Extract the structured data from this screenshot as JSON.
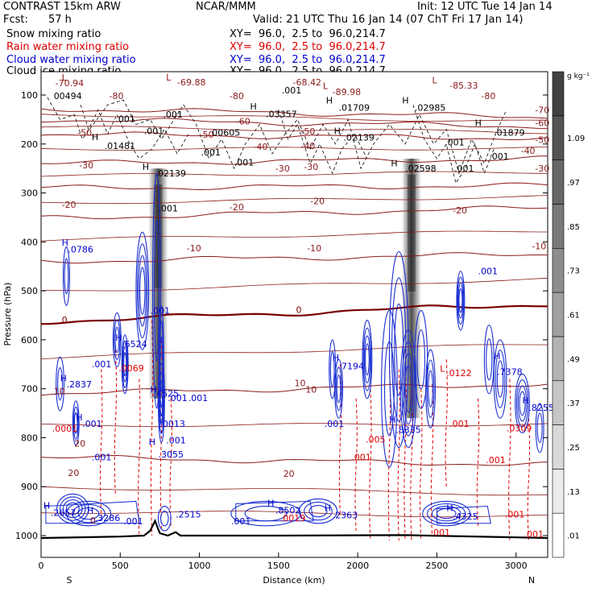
{
  "header": {
    "model": "CONTRAST 15km ARW",
    "fcst_label": "Fcst:",
    "fcst_value": "57 h",
    "center": "NCAR/MMM",
    "init": "Init: 12 UTC Tue 14 Jan 14",
    "valid": "Valid: 21 UTC Thu 16 Jan 14 (07 ChT Fri 17 Jan 14)",
    "xy_text": "XY=  96.0,  2.5 to  96.0,214.7"
  },
  "legend": [
    {
      "name": "Snow mixing ratio",
      "color": "#000000"
    },
    {
      "name": "Rain water mixing ratio",
      "color": "#dd0000"
    },
    {
      "name": "Cloud water mixing ratio",
      "color": "#0000cc"
    },
    {
      "name": "Cloud ice mixing ratio",
      "color": "#000000"
    }
  ],
  "colors": {
    "temperature": "#8b1a1a",
    "freezing": "#7a0000",
    "rain": "#dd0000",
    "cloud_water": "#1a2fd0",
    "cloud_ice": "#000000",
    "terrain": "#000000"
  },
  "chart_data": {
    "type": "heatmap",
    "xlabel": "Distance (km)",
    "ylabel": "Pressure (hPa)",
    "xlim": [
      0,
      3200
    ],
    "ylim": [
      1030,
      50
    ],
    "x_ticks": [
      0,
      500,
      1000,
      1500,
      2000,
      2500,
      3000
    ],
    "y_ticks": [
      100,
      200,
      300,
      400,
      500,
      600,
      700,
      800,
      900,
      1000
    ],
    "x_end_labels": {
      "left": "S",
      "right": "N"
    },
    "colorbar": {
      "unit": "g kg⁻¹",
      "levels": [
        ".01",
        ".13",
        ".25",
        ".37",
        ".49",
        ".61",
        ".73",
        ".85",
        ".97",
        "1.09"
      ]
    },
    "snow_columns": [
      {
        "x_km": 740,
        "p_top": 250,
        "p_bottom": 720
      },
      {
        "x_km": 2340,
        "p_top": 230,
        "p_bottom": 760
      }
    ],
    "temperature_contours": [
      {
        "label": "-70",
        "p_left": 128,
        "p_right": 145
      },
      {
        "label": "-60",
        "p_left": 150,
        "p_right": 164
      },
      {
        "label": "-50",
        "p_left": 180,
        "p_right": 188
      },
      {
        "label": "-40",
        "p_left": 240,
        "p_right": 230
      },
      {
        "label": "-30",
        "p_left": 290,
        "p_right": 285
      },
      {
        "label": "-20",
        "p_left": 352,
        "p_right": 330
      },
      {
        "label": "-10",
        "p_left": 440,
        "p_right": 425
      },
      {
        "label": "0",
        "p_left": 563,
        "p_right": 527
      },
      {
        "label": "10",
        "p_left": 710,
        "p_right": 690
      },
      {
        "label": "20",
        "p_left": 840,
        "p_right": 855
      }
    ],
    "annotations": [
      {
        "text": "-70.94",
        "x": 90,
        "p": 82,
        "color": "#8b1a1a"
      },
      {
        "text": "-69.88",
        "x": 860,
        "p": 80,
        "color": "#8b1a1a"
      },
      {
        "text": "-68.42",
        "x": 1590,
        "p": 80,
        "color": "#8b1a1a"
      },
      {
        "text": "-85.33",
        "x": 2580,
        "p": 87,
        "color": "#8b1a1a"
      },
      {
        "text": "-89.98",
        "x": 1840,
        "p": 100,
        "color": "#8b1a1a"
      },
      {
        "text": "L",
        "x": 130,
        "p": 70,
        "color": "#8b1a1a"
      },
      {
        "text": "L",
        "x": 790,
        "p": 70,
        "color": "#8b1a1a"
      },
      {
        "text": "L",
        "x": 1780,
        "p": 88,
        "color": "#8b1a1a"
      },
      {
        "text": "L",
        "x": 2470,
        "p": 76,
        "color": "#8b1a1a"
      },
      {
        "text": "00494",
        "x": 80,
        "p": 108,
        "color": "#000000"
      },
      {
        "text": "-80",
        "x": 430,
        "p": 108,
        "color": "#8b1a1a"
      },
      {
        "text": "-80",
        "x": 1190,
        "p": 108,
        "color": "#8b1a1a"
      },
      {
        "text": "-80",
        "x": 2780,
        "p": 108,
        "color": "#8b1a1a"
      },
      {
        "text": ".001",
        "x": 1520,
        "p": 97,
        "color": "#000000"
      },
      {
        "text": "H",
        "x": 1320,
        "p": 130,
        "color": "#000000"
      },
      {
        "text": ".03357",
        "x": 1420,
        "p": 145,
        "color": "#000000"
      },
      {
        "text": "H",
        "x": 1800,
        "p": 117,
        "color": "#000000"
      },
      {
        "text": ".01709",
        "x": 1880,
        "p": 132,
        "color": "#000000"
      },
      {
        "text": "H",
        "x": 2280,
        "p": 117,
        "color": "#000000"
      },
      {
        "text": ".02985",
        "x": 2360,
        "p": 132,
        "color": "#000000"
      },
      {
        "text": "-70",
        "x": 3120,
        "p": 137,
        "color": "#8b1a1a"
      },
      {
        "text": "-60",
        "x": 3120,
        "p": 163,
        "color": "#8b1a1a"
      },
      {
        "text": ".001",
        "x": 470,
        "p": 155,
        "color": "#000000"
      },
      {
        "text": ".001",
        "x": 770,
        "p": 146,
        "color": "#000000"
      },
      {
        "text": "-60",
        "x": 1230,
        "p": 160,
        "color": "#8b1a1a"
      },
      {
        "text": "H",
        "x": 2740,
        "p": 163,
        "color": "#000000"
      },
      {
        "text": "-50",
        "x": 230,
        "p": 183,
        "color": "#8b1a1a"
      },
      {
        "text": ".001",
        "x": 650,
        "p": 180,
        "color": "#000000"
      },
      {
        "text": "-50",
        "x": 1000,
        "p": 187,
        "color": "#8b1a1a"
      },
      {
        "text": "00605",
        "x": 1080,
        "p": 183,
        "color": "#000000"
      },
      {
        "text": "-50",
        "x": 1640,
        "p": 181,
        "color": "#8b1a1a"
      },
      {
        "text": "H",
        "x": 1850,
        "p": 180,
        "color": "#000000"
      },
      {
        "text": ".01879",
        "x": 2860,
        "p": 183,
        "color": "#000000"
      },
      {
        "text": "-50",
        "x": 3120,
        "p": 198,
        "color": "#8b1a1a"
      },
      {
        "text": "H",
        "x": 320,
        "p": 192,
        "color": "#000000"
      },
      {
        "text": ".02139",
        "x": 1910,
        "p": 193,
        "color": "#000000"
      },
      {
        "text": ".01481",
        "x": 400,
        "p": 210,
        "color": "#000000"
      },
      {
        "text": "-40",
        "x": 1340,
        "p": 212,
        "color": "#8b1a1a"
      },
      {
        "text": "-40",
        "x": 1640,
        "p": 210,
        "color": "#8b1a1a"
      },
      {
        "text": ".001",
        "x": 2550,
        "p": 203,
        "color": "#000000"
      },
      {
        "text": "-40",
        "x": 3030,
        "p": 220,
        "color": "#8b1a1a"
      },
      {
        "text": ".001",
        "x": 1010,
        "p": 223,
        "color": "#000000"
      },
      {
        "text": ".001",
        "x": 2830,
        "p": 232,
        "color": "#000000"
      },
      {
        "text": "-30",
        "x": 240,
        "p": 250,
        "color": "#8b1a1a"
      },
      {
        "text": "H",
        "x": 640,
        "p": 253,
        "color": "#000000"
      },
      {
        "text": ".001",
        "x": 1220,
        "p": 244,
        "color": "#000000"
      },
      {
        "text": "-30",
        "x": 1480,
        "p": 256,
        "color": "#8b1a1a"
      },
      {
        "text": "-30",
        "x": 1660,
        "p": 253,
        "color": "#8b1a1a"
      },
      {
        "text": "H",
        "x": 2210,
        "p": 246,
        "color": "#000000"
      },
      {
        "text": ".02598",
        "x": 2300,
        "p": 256,
        "color": "#000000"
      },
      {
        "text": ".001",
        "x": 2610,
        "p": 256,
        "color": "#000000"
      },
      {
        "text": "-30",
        "x": 3120,
        "p": 256,
        "color": "#8b1a1a"
      },
      {
        "text": ".02139",
        "x": 720,
        "p": 266,
        "color": "#000000"
      },
      {
        "text": "-20",
        "x": 130,
        "p": 330,
        "color": "#8b1a1a"
      },
      {
        "text": ".001",
        "x": 740,
        "p": 338,
        "color": "#000000"
      },
      {
        "text": "-20",
        "x": 1190,
        "p": 335,
        "color": "#8b1a1a"
      },
      {
        "text": "-20",
        "x": 1700,
        "p": 323,
        "color": "#8b1a1a"
      },
      {
        "text": "-20",
        "x": 2600,
        "p": 342,
        "color": "#8b1a1a"
      },
      {
        "text": "H",
        "x": 130,
        "p": 408,
        "color": "#0000cc"
      },
      {
        "text": ".0786",
        "x": 170,
        "p": 422,
        "color": "#0000cc"
      },
      {
        "text": "-10",
        "x": 920,
        "p": 419,
        "color": "#8b1a1a"
      },
      {
        "text": "-10",
        "x": 1680,
        "p": 419,
        "color": "#8b1a1a"
      },
      {
        "text": "-10",
        "x": 3100,
        "p": 415,
        "color": "#8b1a1a"
      },
      {
        "text": ".001",
        "x": 2760,
        "p": 466,
        "color": "#0000cc"
      },
      {
        "text": "0",
        "x": 130,
        "p": 566,
        "color": "#7a0000"
      },
      {
        "text": "0",
        "x": 1610,
        "p": 545,
        "color": "#7a0000"
      },
      {
        "text": ".001",
        "x": 690,
        "p": 547,
        "color": "#0000cc"
      },
      {
        "text": "H",
        "x": 470,
        "p": 602,
        "color": "#0000cc"
      },
      {
        "text": ".6524",
        "x": 510,
        "p": 615,
        "color": "#0000cc"
      },
      {
        "text": ".001",
        "x": 320,
        "p": 656,
        "color": "#0000cc"
      },
      {
        "text": ".0069",
        "x": 490,
        "p": 664,
        "color": "#dd0000"
      },
      {
        "text": "H",
        "x": 1840,
        "p": 643,
        "color": "#0000cc"
      },
      {
        "text": ".7194",
        "x": 1880,
        "p": 660,
        "color": "#0000cc"
      },
      {
        "text": "L",
        "x": 2520,
        "p": 665,
        "color": "#dd0000"
      },
      {
        "text": ".0122",
        "x": 2560,
        "p": 674,
        "color": "#dd0000"
      },
      {
        "text": "H",
        "x": 2860,
        "p": 640,
        "color": "#0000cc"
      },
      {
        "text": ".7378",
        "x": 2880,
        "p": 672,
        "color": "#0000cc"
      },
      {
        "text": "H",
        "x": 120,
        "p": 685,
        "color": "#0000cc"
      },
      {
        "text": ".2837",
        "x": 160,
        "p": 697,
        "color": "#0000cc"
      },
      {
        "text": "10",
        "x": 80,
        "p": 711,
        "color": "#8b1a1a"
      },
      {
        "text": "10",
        "x": 1600,
        "p": 695,
        "color": "#8b1a1a"
      },
      {
        "text": "10",
        "x": 1670,
        "p": 708,
        "color": "#8b1a1a"
      },
      {
        "text": ".4525",
        "x": 710,
        "p": 716,
        "color": "#0000cc"
      },
      {
        "text": "H",
        "x": 690,
        "p": 708,
        "color": "#0000cc"
      },
      {
        "text": ".001",
        "x": 800,
        "p": 725,
        "color": "#0000cc"
      },
      {
        "text": ".001",
        "x": 930,
        "p": 725,
        "color": "#0000cc"
      },
      {
        "text": "H",
        "x": 3040,
        "p": 730,
        "color": "#0000cc"
      },
      {
        "text": ".8255",
        "x": 3080,
        "p": 745,
        "color": "#0000cc"
      },
      {
        "text": "H",
        "x": 220,
        "p": 765,
        "color": "#0000cc"
      },
      {
        "text": ".001",
        "x": 260,
        "p": 778,
        "color": "#0000cc"
      },
      {
        "text": ".0001",
        "x": 70,
        "p": 788,
        "color": "#dd0000"
      },
      {
        "text": ".001",
        "x": 1790,
        "p": 778,
        "color": "#0000cc"
      },
      {
        "text": "H",
        "x": 2200,
        "p": 770,
        "color": "#0000cc"
      },
      {
        "text": ".8335",
        "x": 2240,
        "p": 790,
        "color": "#0000cc"
      },
      {
        "text": ".001",
        "x": 2580,
        "p": 778,
        "color": "#dd0000"
      },
      {
        "text": ".0309",
        "x": 2940,
        "p": 787,
        "color": "#dd0000"
      },
      {
        "text": ".0013",
        "x": 750,
        "p": 778,
        "color": "#0000cc"
      },
      {
        "text": ".001",
        "x": 790,
        "p": 812,
        "color": "#0000cc"
      },
      {
        "text": ".005",
        "x": 2050,
        "p": 810,
        "color": "#dd0000"
      },
      {
        "text": "H",
        "x": 680,
        "p": 815,
        "color": "#0000cc"
      },
      {
        "text": "20",
        "x": 210,
        "p": 818,
        "color": "#8b1a1a"
      },
      {
        "text": ".3055",
        "x": 740,
        "p": 840,
        "color": "#0000cc"
      },
      {
        "text": ".001",
        "x": 320,
        "p": 846,
        "color": "#0000cc"
      },
      {
        "text": ".001",
        "x": 1960,
        "p": 846,
        "color": "#dd0000"
      },
      {
        "text": ".001",
        "x": 2810,
        "p": 852,
        "color": "#dd0000"
      },
      {
        "text": "20",
        "x": 170,
        "p": 878,
        "color": "#8b1a1a"
      },
      {
        "text": "20",
        "x": 1530,
        "p": 880,
        "color": "#8b1a1a"
      },
      {
        "text": "H",
        "x": 15,
        "p": 945,
        "color": "#0000cc"
      },
      {
        "text": ".2657",
        "x": 60,
        "p": 960,
        "color": "#0000cc"
      },
      {
        "text": "H",
        "x": 290,
        "p": 955,
        "color": "#0000cc"
      },
      {
        "text": ".3286",
        "x": 340,
        "p": 970,
        "color": "#0000cc"
      },
      {
        "text": ".001",
        "x": 520,
        "p": 977,
        "color": "#0000cc"
      },
      {
        "text": ".2515",
        "x": 850,
        "p": 963,
        "color": "#0000cc"
      },
      {
        "text": ".001",
        "x": 1200,
        "p": 977,
        "color": "#0000cc"
      },
      {
        "text": "H",
        "x": 1430,
        "p": 940,
        "color": "#0000cc"
      },
      {
        "text": ".8502",
        "x": 1480,
        "p": 955,
        "color": "#0000cc"
      },
      {
        "text": ".0019",
        "x": 1510,
        "p": 970,
        "color": "#dd0000"
      },
      {
        "text": "H",
        "x": 1790,
        "p": 950,
        "color": "#0000cc"
      },
      {
        "text": ".2363",
        "x": 1840,
        "p": 965,
        "color": "#0000cc"
      },
      {
        "text": "H",
        "x": 2560,
        "p": 950,
        "color": "#0000cc"
      },
      {
        "text": ".4325",
        "x": 2600,
        "p": 967,
        "color": "#0000cc"
      },
      {
        "text": ".001",
        "x": 2930,
        "p": 963,
        "color": "#dd0000"
      },
      {
        "text": ".001",
        "x": 2460,
        "p": 1000,
        "color": "#dd0000"
      },
      {
        "text": ".001",
        "x": 3050,
        "p": 1003,
        "color": "#dd0000"
      },
      {
        "text": "0",
        "x": 310,
        "p": 975,
        "color": "#8b1a1a"
      }
    ]
  }
}
